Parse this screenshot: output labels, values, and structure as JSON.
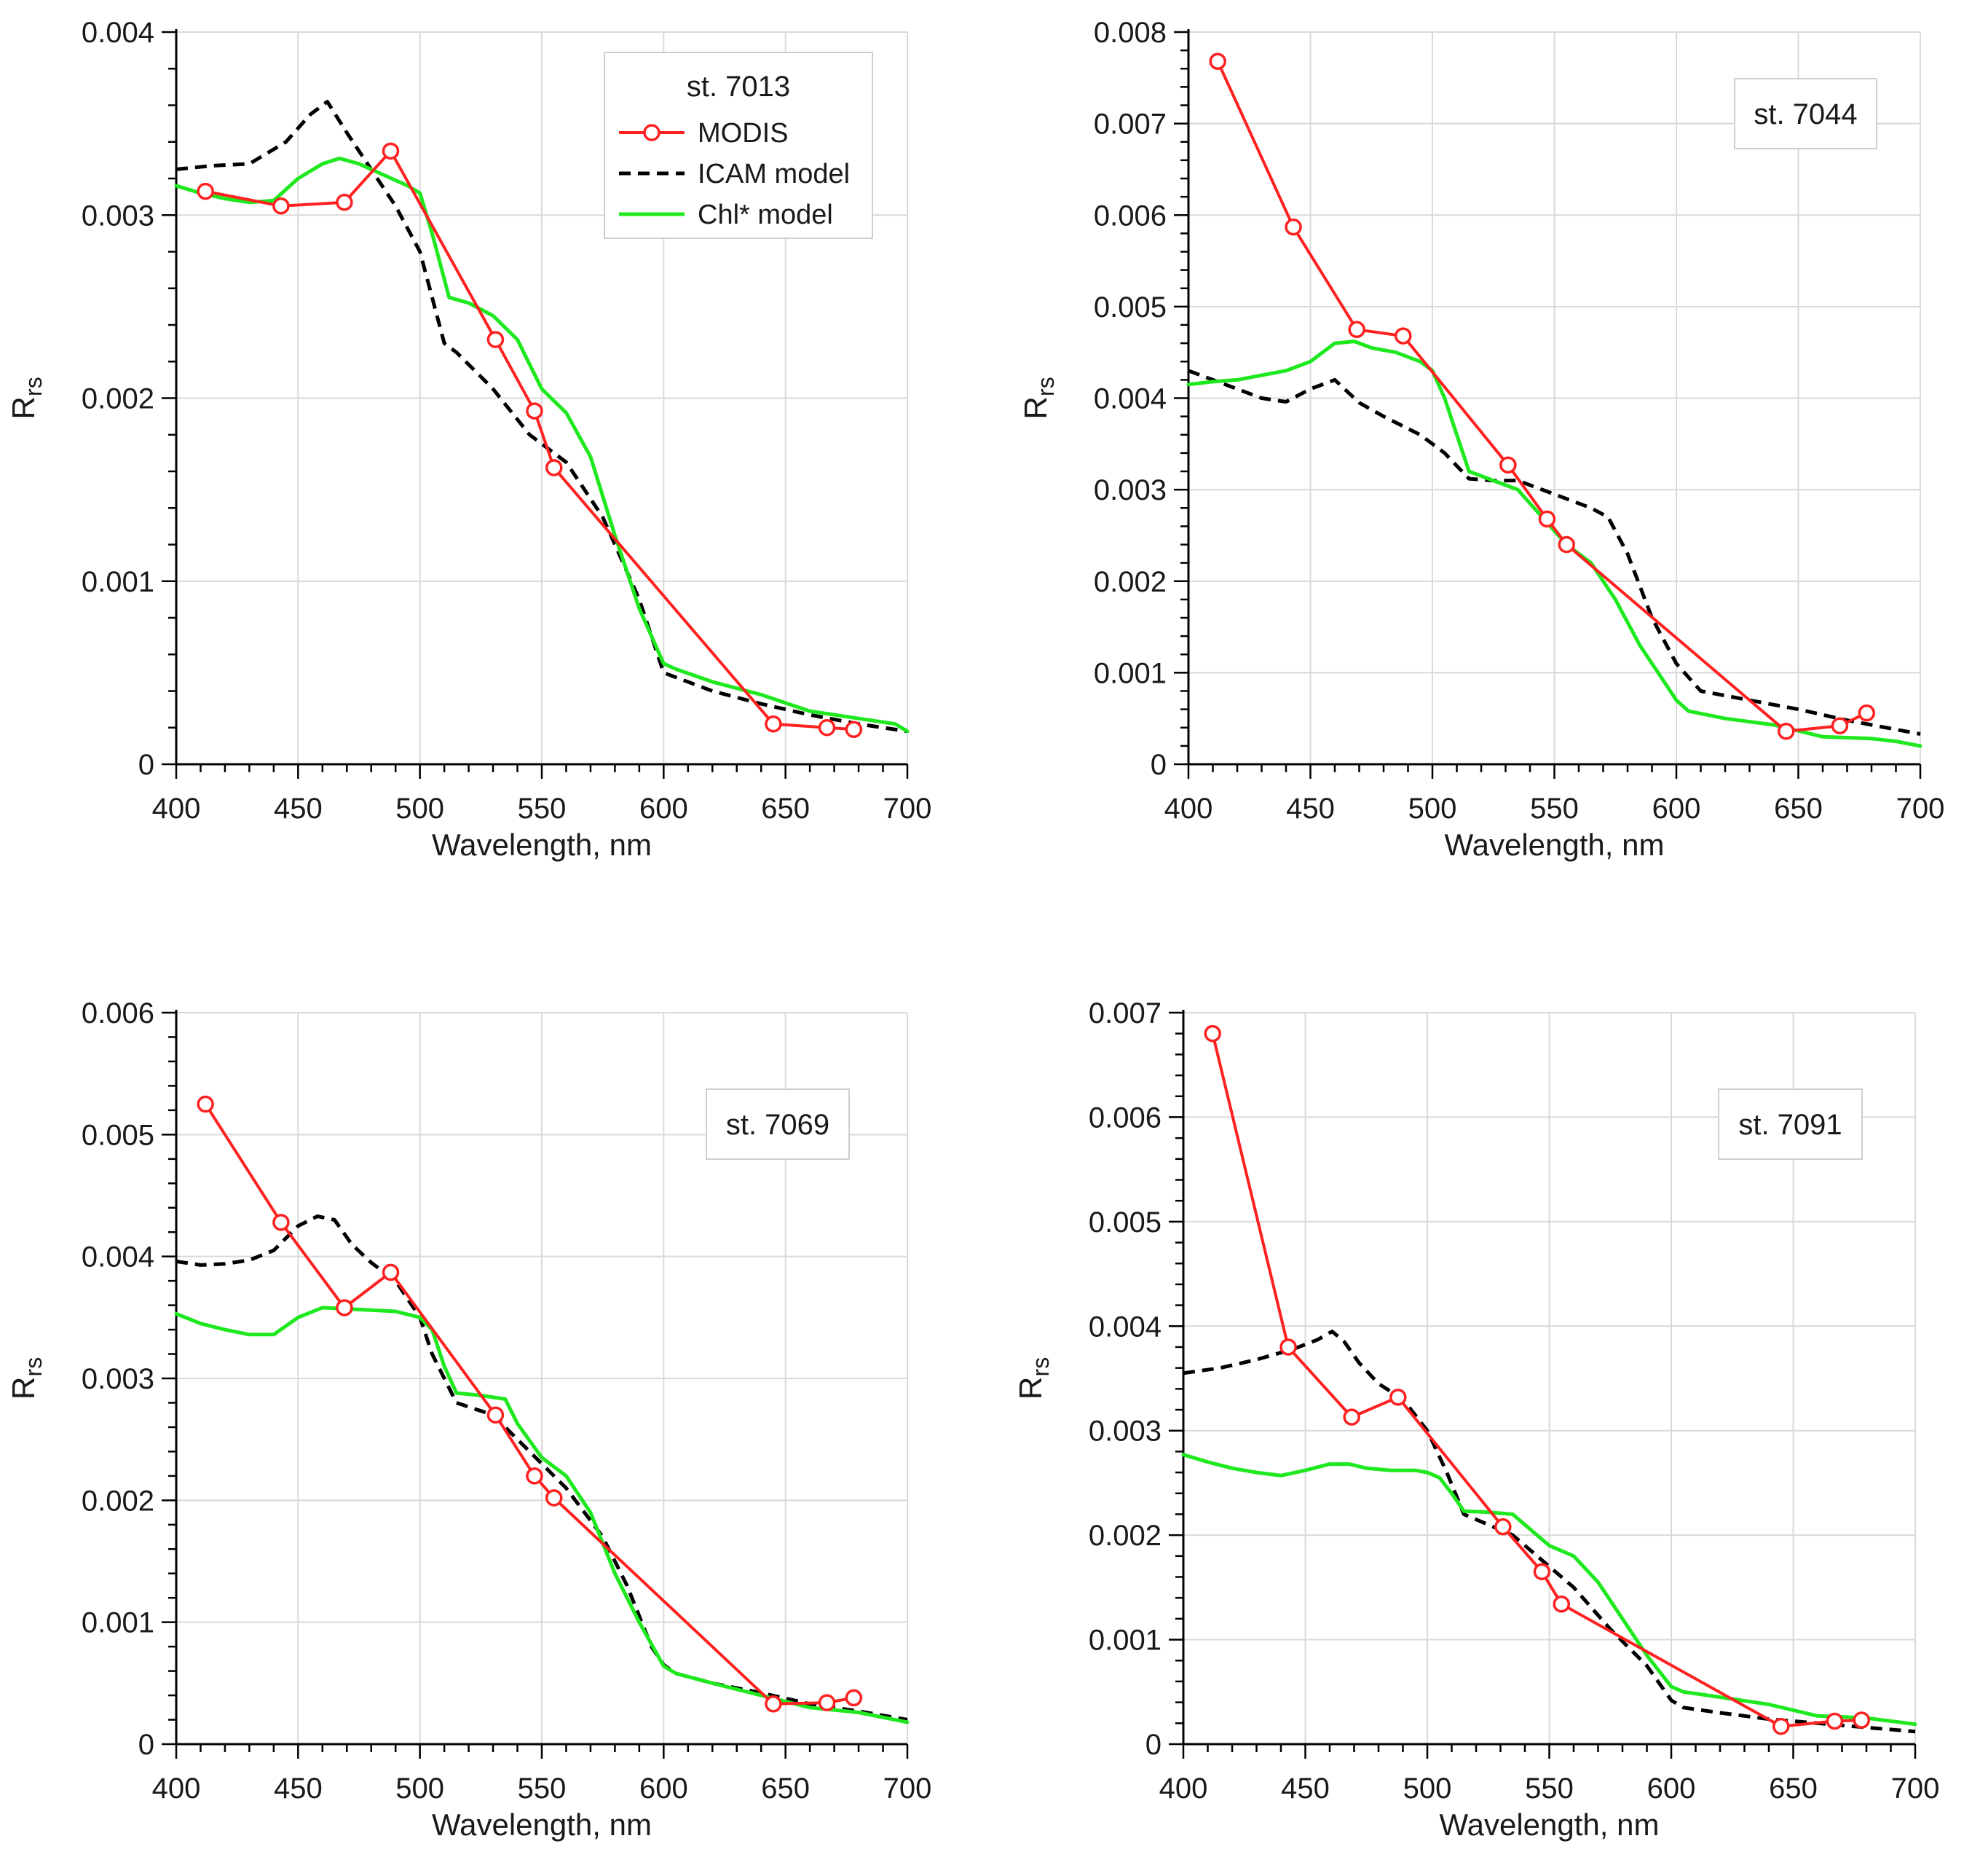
{
  "colors": {
    "modis": "#ff2020",
    "icam": "#000000",
    "chl": "#1ee81e",
    "grid": "#d9d9d9"
  },
  "chart_data": [
    {
      "type": "line",
      "station": "st. 7013",
      "xlabel": "Wavelength, nm",
      "ylabel": "R",
      "ylabel_sub": "rs",
      "xlim": [
        400,
        700
      ],
      "ylim": [
        0,
        0.004
      ],
      "xticks": [
        400,
        450,
        500,
        550,
        600,
        650,
        700
      ],
      "xtick_labels": [
        "400",
        "450",
        "500",
        "550",
        "600",
        "650",
        "700"
      ],
      "yticks": [
        0,
        0.001,
        0.002,
        0.003,
        0.004
      ],
      "ytick_labels": [
        "0",
        "0.001",
        "0.002",
        "0.003",
        "0.004"
      ],
      "legend": {
        "title": "st. 7013",
        "entries": [
          "MODIS",
          "ICAM model",
          "Chl* model"
        ]
      },
      "series": [
        {
          "name": "MODIS",
          "x": [
            412,
            443,
            469,
            488,
            531,
            547,
            555,
            645,
            667,
            678
          ],
          "values": [
            0.00313,
            0.00305,
            0.00307,
            0.00335,
            0.00232,
            0.00193,
            0.00162,
            0.00022,
            0.0002,
            0.00019
          ]
        },
        {
          "name": "ICAM model",
          "x": [
            400,
            415,
            430,
            445,
            455,
            462,
            470,
            480,
            490,
            500,
            510,
            515,
            530,
            545,
            560,
            575,
            590,
            600,
            620,
            640,
            660,
            680,
            700
          ],
          "values": [
            0.00325,
            0.00327,
            0.00328,
            0.0034,
            0.00355,
            0.00362,
            0.00345,
            0.00325,
            0.00305,
            0.0028,
            0.0023,
            0.00225,
            0.00205,
            0.0018,
            0.00165,
            0.00135,
            0.0009,
            0.0005,
            0.0004,
            0.00033,
            0.00027,
            0.00022,
            0.00018
          ]
        },
        {
          "name": "Chl* model",
          "x": [
            400,
            410,
            420,
            430,
            440,
            450,
            460,
            467,
            475,
            485,
            495,
            500,
            505,
            512,
            520,
            530,
            540,
            550,
            560,
            570,
            580,
            590,
            600,
            605,
            620,
            640,
            660,
            680,
            695,
            700
          ],
          "values": [
            0.00316,
            0.00312,
            0.00309,
            0.00307,
            0.00308,
            0.0032,
            0.00328,
            0.00331,
            0.00328,
            0.00322,
            0.00316,
            0.00312,
            0.0029,
            0.00255,
            0.00252,
            0.00245,
            0.00232,
            0.00205,
            0.00192,
            0.00168,
            0.00125,
            0.00085,
            0.00055,
            0.00052,
            0.00045,
            0.00038,
            0.00029,
            0.00025,
            0.00022,
            0.00018
          ]
        }
      ]
    },
    {
      "type": "line",
      "station": "st. 7044",
      "xlabel": "Wavelength, nm",
      "ylabel": "R",
      "ylabel_sub": "rs",
      "xlim": [
        400,
        700
      ],
      "ylim": [
        0,
        0.008
      ],
      "xticks": [
        400,
        450,
        500,
        550,
        600,
        650,
        700
      ],
      "xtick_labels": [
        "400",
        "450",
        "500",
        "550",
        "600",
        "650",
        "700"
      ],
      "yticks": [
        0,
        0.001,
        0.002,
        0.003,
        0.004,
        0.005,
        0.006,
        0.007,
        0.008
      ],
      "ytick_labels": [
        "0",
        "0.001",
        "0.002",
        "0.003",
        "0.004",
        "0.005",
        "0.006",
        "0.007",
        "0.008"
      ],
      "series": [
        {
          "name": "MODIS",
          "x": [
            412,
            443,
            469,
            488,
            531,
            547,
            555,
            645,
            667,
            678
          ],
          "values": [
            0.00768,
            0.00587,
            0.00475,
            0.00468,
            0.00327,
            0.00268,
            0.0024,
            0.00036,
            0.00042,
            0.00056
          ]
        },
        {
          "name": "ICAM model",
          "x": [
            400,
            410,
            420,
            430,
            440,
            450,
            460,
            470,
            480,
            495,
            505,
            515,
            525,
            535,
            545,
            555,
            565,
            572,
            580,
            590,
            600,
            610,
            630,
            650,
            670,
            690,
            700
          ],
          "values": [
            0.0043,
            0.0042,
            0.0041,
            0.004,
            0.00396,
            0.0041,
            0.0042,
            0.00395,
            0.0038,
            0.0036,
            0.0034,
            0.00312,
            0.0031,
            0.0031,
            0.003,
            0.0029,
            0.0028,
            0.0027,
            0.0023,
            0.0016,
            0.0011,
            0.0008,
            0.0007,
            0.0006,
            0.00048,
            0.00038,
            0.00033
          ]
        },
        {
          "name": "Chl* model",
          "x": [
            400,
            410,
            420,
            430,
            440,
            450,
            460,
            468,
            475,
            485,
            495,
            500,
            505,
            510,
            515,
            525,
            535,
            545,
            555,
            565,
            575,
            585,
            595,
            600,
            605,
            620,
            640,
            660,
            680,
            690,
            700
          ],
          "values": [
            0.00415,
            0.00418,
            0.0042,
            0.00425,
            0.0043,
            0.0044,
            0.0046,
            0.00462,
            0.00455,
            0.0045,
            0.0044,
            0.0043,
            0.004,
            0.0036,
            0.0032,
            0.0031,
            0.003,
            0.0027,
            0.0024,
            0.0022,
            0.0018,
            0.0013,
            0.0009,
            0.0007,
            0.00058,
            0.0005,
            0.00043,
            0.0003,
            0.00028,
            0.00025,
            0.0002
          ]
        }
      ]
    },
    {
      "type": "line",
      "station": "st. 7069",
      "xlabel": "Wavelength, nm",
      "ylabel": "R",
      "ylabel_sub": "rs",
      "xlim": [
        400,
        700
      ],
      "ylim": [
        0,
        0.006
      ],
      "xticks": [
        400,
        450,
        500,
        550,
        600,
        650,
        700
      ],
      "xtick_labels": [
        "400",
        "450",
        "500",
        "550",
        "600",
        "650",
        "700"
      ],
      "yticks": [
        0,
        0.001,
        0.002,
        0.003,
        0.004,
        0.005,
        0.006
      ],
      "ytick_labels": [
        "0",
        "0.001",
        "0.002",
        "0.003",
        "0.004",
        "0.005",
        "0.006"
      ],
      "series": [
        {
          "name": "MODIS",
          "x": [
            412,
            443,
            469,
            488,
            531,
            547,
            555,
            645,
            667,
            678
          ],
          "values": [
            0.00525,
            0.00428,
            0.00358,
            0.00387,
            0.0027,
            0.0022,
            0.00202,
            0.00033,
            0.00034,
            0.00038
          ]
        },
        {
          "name": "ICAM model",
          "x": [
            400,
            410,
            420,
            430,
            440,
            450,
            458,
            465,
            472,
            480,
            490,
            500,
            505,
            510,
            515,
            530,
            545,
            560,
            575,
            585,
            595,
            600,
            605,
            620,
            640,
            660,
            680,
            700
          ],
          "values": [
            0.00396,
            0.00393,
            0.00394,
            0.00397,
            0.00405,
            0.00425,
            0.00433,
            0.0043,
            0.0041,
            0.00395,
            0.0038,
            0.0035,
            0.0032,
            0.003,
            0.0028,
            0.0027,
            0.0024,
            0.0021,
            0.0017,
            0.0013,
            0.0008,
            0.00065,
            0.00058,
            0.0005,
            0.00042,
            0.00033,
            0.00027,
            0.0002
          ]
        },
        {
          "name": "Chl* model",
          "x": [
            400,
            410,
            420,
            430,
            440,
            450,
            460,
            470,
            480,
            490,
            500,
            505,
            510,
            515,
            525,
            535,
            540,
            550,
            560,
            570,
            580,
            590,
            600,
            605,
            620,
            640,
            660,
            680,
            700
          ],
          "values": [
            0.00353,
            0.00345,
            0.0034,
            0.00336,
            0.00336,
            0.0035,
            0.00358,
            0.00357,
            0.00356,
            0.00355,
            0.0035,
            0.0034,
            0.0031,
            0.00288,
            0.00286,
            0.00283,
            0.00263,
            0.00235,
            0.0022,
            0.0019,
            0.0014,
            0.001,
            0.00064,
            0.00058,
            0.0005,
            0.0004,
            0.0003,
            0.00026,
            0.00018
          ]
        }
      ]
    },
    {
      "type": "line",
      "station": "st. 7091",
      "xlabel": "Wavelength, nm",
      "ylabel": "R",
      "ylabel_sub": "rs",
      "xlim": [
        400,
        700
      ],
      "ylim": [
        0,
        0.007
      ],
      "xticks": [
        400,
        450,
        500,
        550,
        600,
        650,
        700
      ],
      "xtick_labels": [
        "400",
        "450",
        "500",
        "550",
        "600",
        "650",
        "700"
      ],
      "yticks": [
        0,
        0.001,
        0.002,
        0.003,
        0.004,
        0.005,
        0.006,
        0.007
      ],
      "ytick_labels": [
        "0",
        "0.001",
        "0.002",
        "0.003",
        "0.004",
        "0.005",
        "0.006",
        "0.007"
      ],
      "series": [
        {
          "name": "MODIS",
          "x": [
            412,
            443,
            469,
            488,
            531,
            547,
            555,
            645,
            667,
            678
          ],
          "values": [
            0.0068,
            0.0038,
            0.00313,
            0.00332,
            0.00208,
            0.00165,
            0.00134,
            0.00017,
            0.00022,
            0.00023
          ]
        },
        {
          "name": "ICAM model",
          "x": [
            400,
            415,
            430,
            445,
            455,
            461,
            466,
            472,
            480,
            490,
            500,
            508,
            515,
            525,
            535,
            545,
            560,
            575,
            590,
            600,
            605,
            620,
            640,
            660,
            680,
            700
          ],
          "values": [
            0.00355,
            0.0036,
            0.00368,
            0.00378,
            0.00387,
            0.00395,
            0.00385,
            0.00365,
            0.00345,
            0.0033,
            0.003,
            0.0026,
            0.0022,
            0.0021,
            0.002,
            0.0018,
            0.0015,
            0.0011,
            0.00075,
            0.00042,
            0.00035,
            0.0003,
            0.00024,
            0.0002,
            0.00016,
            0.00012
          ]
        },
        {
          "name": "Chl* model",
          "x": [
            400,
            410,
            420,
            430,
            440,
            450,
            460,
            468,
            475,
            485,
            495,
            500,
            505,
            510,
            515,
            525,
            535,
            540,
            550,
            560,
            570,
            580,
            590,
            600,
            605,
            620,
            640,
            660,
            680,
            700
          ],
          "values": [
            0.00277,
            0.0027,
            0.00264,
            0.0026,
            0.00257,
            0.00262,
            0.00268,
            0.00268,
            0.00264,
            0.00262,
            0.00262,
            0.0026,
            0.00255,
            0.0024,
            0.00223,
            0.00222,
            0.0022,
            0.0021,
            0.0019,
            0.0018,
            0.00155,
            0.0012,
            0.00085,
            0.00055,
            0.0005,
            0.00045,
            0.00038,
            0.00027,
            0.00025,
            0.00019
          ]
        }
      ]
    }
  ]
}
